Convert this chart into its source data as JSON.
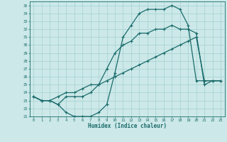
{
  "xlabel": "Humidex (Indice chaleur)",
  "bg_color": "#cce8e8",
  "line_color": "#1a6b6b",
  "grid_color": "#aad4d4",
  "xlim": [
    -0.5,
    23.5
  ],
  "ylim": [
    21,
    35.5
  ],
  "yticks": [
    21,
    22,
    23,
    24,
    25,
    26,
    27,
    28,
    29,
    30,
    31,
    32,
    33,
    34,
    35
  ],
  "xticks": [
    0,
    1,
    2,
    3,
    4,
    5,
    6,
    7,
    8,
    9,
    10,
    11,
    12,
    13,
    14,
    15,
    16,
    17,
    18,
    19,
    20,
    21,
    22,
    23
  ],
  "line1_x": [
    0,
    1,
    2,
    3,
    4,
    5,
    6,
    7,
    8,
    9,
    10,
    11,
    12,
    13,
    14,
    15,
    16,
    17,
    18,
    19,
    20,
    21,
    22,
    23
  ],
  "line1_y": [
    23.5,
    23.0,
    23.0,
    22.5,
    21.5,
    21.0,
    21.0,
    21.0,
    21.5,
    22.5,
    26.5,
    31.0,
    32.5,
    34.0,
    34.5,
    34.5,
    34.5,
    35.0,
    34.5,
    32.5,
    25.5,
    25.5,
    25.5,
    25.5
  ],
  "line2_x": [
    0,
    1,
    2,
    3,
    4,
    5,
    6,
    7,
    8,
    9,
    10,
    11,
    12,
    13,
    14,
    15,
    16,
    17,
    18,
    19,
    20,
    21,
    22,
    23
  ],
  "line2_y": [
    23.5,
    23.0,
    23.0,
    22.5,
    23.5,
    23.5,
    23.5,
    24.0,
    25.0,
    27.0,
    29.0,
    30.0,
    30.5,
    31.5,
    31.5,
    32.0,
    32.0,
    32.5,
    32.0,
    32.0,
    31.5,
    25.0,
    25.5,
    25.5
  ],
  "line3_x": [
    0,
    1,
    2,
    3,
    4,
    5,
    6,
    7,
    8,
    9,
    10,
    11,
    12,
    13,
    14,
    15,
    16,
    17,
    18,
    19,
    20,
    21,
    22,
    23
  ],
  "line3_y": [
    23.5,
    23.0,
    23.0,
    23.5,
    24.0,
    24.0,
    24.5,
    25.0,
    25.0,
    25.5,
    26.0,
    26.5,
    27.0,
    27.5,
    28.0,
    28.5,
    29.0,
    29.5,
    30.0,
    30.5,
    31.0,
    25.5,
    25.5,
    25.5
  ]
}
